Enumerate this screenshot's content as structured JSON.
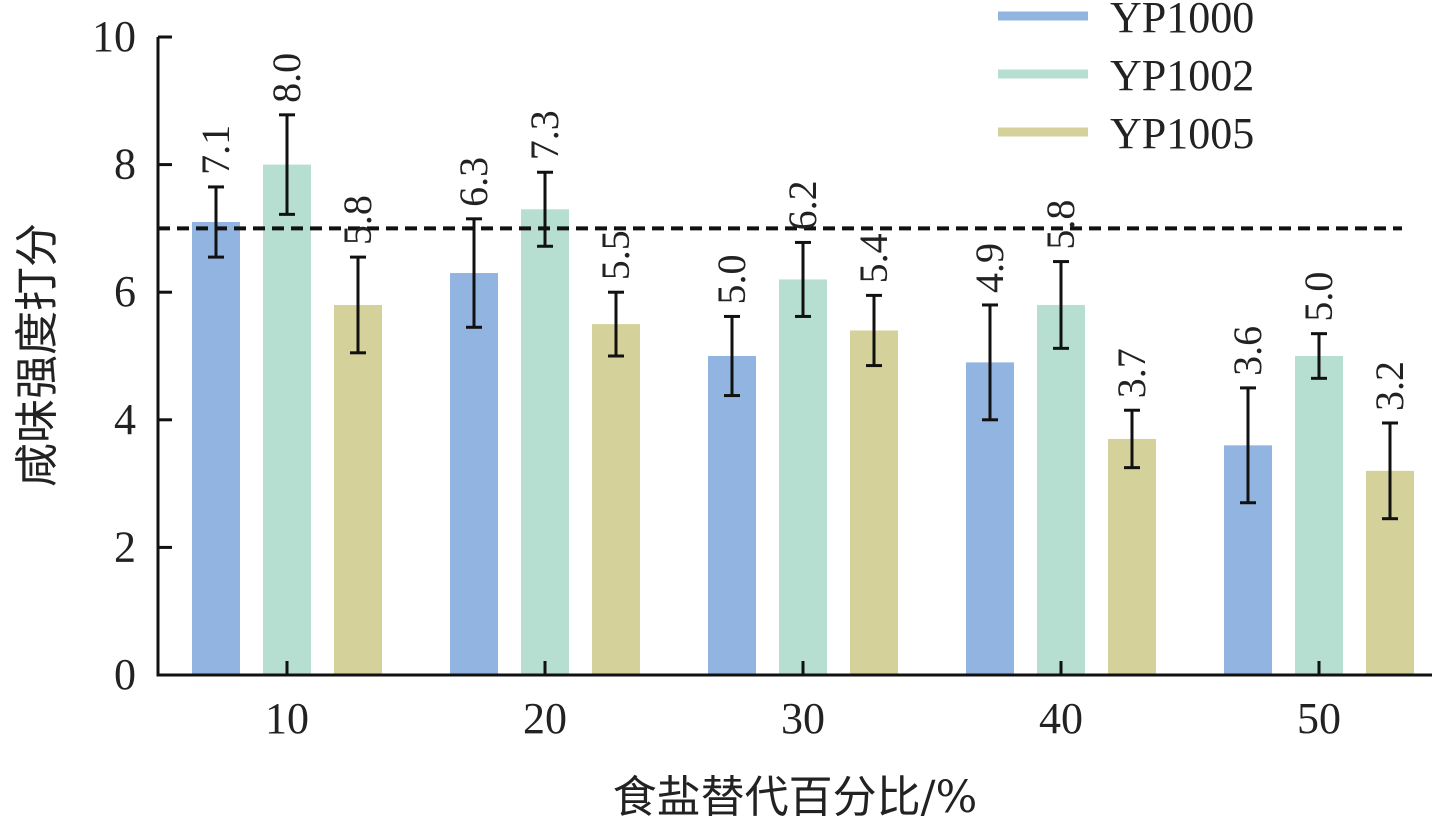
{
  "chart_data": {
    "type": "bar",
    "title": "",
    "xlabel": "食盐替代百分比/%",
    "ylabel": "咸味强度打分",
    "categories": [
      "10",
      "20",
      "30",
      "40",
      "50"
    ],
    "ylim": [
      0,
      10
    ],
    "yticks": [
      "0",
      "2",
      "4",
      "6",
      "8",
      "10"
    ],
    "reference_line": 7,
    "legend_position": "top-right",
    "series": [
      {
        "name": "YP1000",
        "color": "#92b4e0",
        "values": [
          7.1,
          6.3,
          5.0,
          4.9,
          3.6
        ],
        "errors": [
          0.55,
          0.85,
          0.62,
          0.9,
          0.9
        ],
        "labels": [
          "7.1",
          "6.3",
          "5.0",
          "4.9",
          "3.6"
        ]
      },
      {
        "name": "YP1002",
        "color": "#b6dfd2",
        "values": [
          8.0,
          7.3,
          6.2,
          5.8,
          5.0
        ],
        "errors": [
          0.78,
          0.58,
          0.58,
          0.68,
          0.35
        ],
        "labels": [
          "8.0",
          "7.3",
          "6.2",
          "5.8",
          "5.0"
        ]
      },
      {
        "name": "YP1005",
        "color": "#d4d19a",
        "values": [
          5.8,
          5.5,
          5.4,
          3.7,
          3.2
        ],
        "errors": [
          0.75,
          0.5,
          0.55,
          0.45,
          0.75
        ],
        "labels": [
          "5.8",
          "5.5",
          "5.4",
          "3.7",
          "3.2"
        ]
      }
    ]
  }
}
